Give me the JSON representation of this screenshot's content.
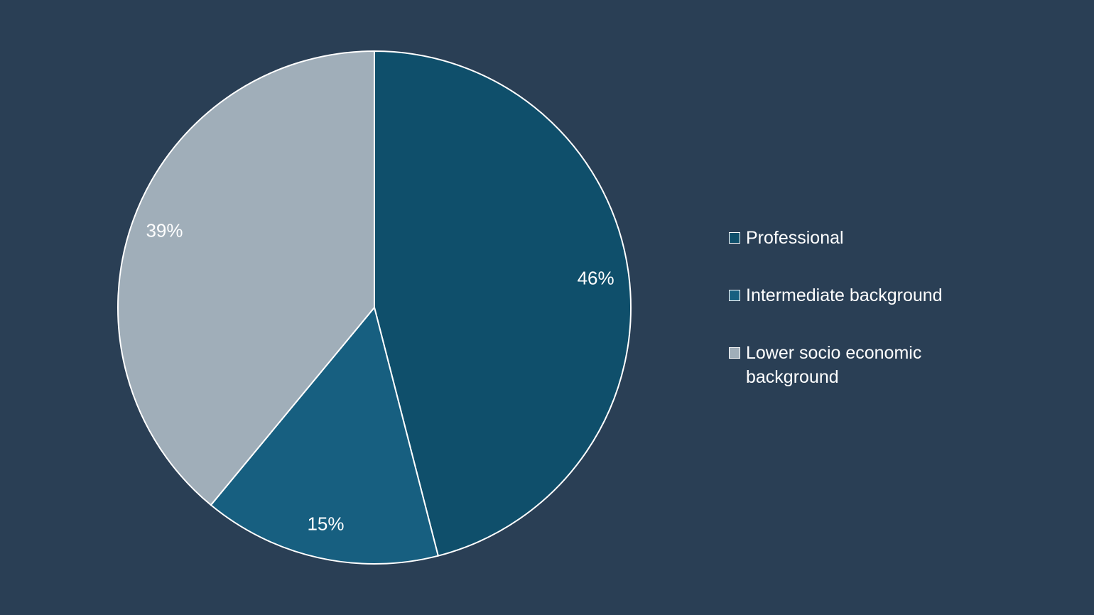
{
  "chart_data": {
    "type": "pie",
    "categories": [
      "Professional",
      "Intermediate background",
      "Lower socio economic background"
    ],
    "values": [
      46,
      15,
      39
    ],
    "value_labels": [
      "46%",
      "15%",
      "39%"
    ],
    "colors": [
      "#0f4f6b",
      "#175f80",
      "#a0aeb9"
    ],
    "legend": "right"
  }
}
